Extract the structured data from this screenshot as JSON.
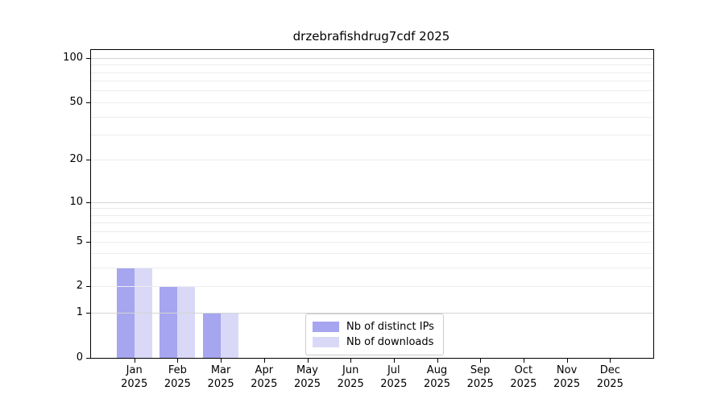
{
  "chart_data": {
    "type": "bar",
    "title": "drzebrafishdrug7cdf 2025",
    "x_categories_line1": [
      "Jan",
      "Feb",
      "Mar",
      "Apr",
      "May",
      "Jun",
      "Jul",
      "Aug",
      "Sep",
      "Oct",
      "Nov",
      "Dec"
    ],
    "x_categories_line2": [
      "2025",
      "2025",
      "2025",
      "2025",
      "2025",
      "2025",
      "2025",
      "2025",
      "2025",
      "2025",
      "2025",
      "2025"
    ],
    "series": [
      {
        "name": "Nb of distinct IPs",
        "color": "#a5a5f0",
        "values": [
          3,
          2,
          1,
          0,
          0,
          0,
          0,
          0,
          0,
          0,
          0,
          0
        ]
      },
      {
        "name": "Nb of downloads",
        "color": "#d9d9f7",
        "values": [
          3,
          2,
          1,
          0,
          0,
          0,
          0,
          0,
          0,
          0,
          0,
          0
        ]
      }
    ],
    "y_axis": {
      "scale": "log10(value+1)",
      "ticks": [
        0,
        1,
        2,
        5,
        10,
        20,
        50,
        100
      ],
      "max": 113,
      "major_gridlines": [
        1,
        10,
        100
      ],
      "minor_gridlines": [
        1,
        2,
        3,
        4,
        5,
        6,
        7,
        8,
        9,
        10,
        20,
        30,
        40,
        50,
        60,
        70,
        80,
        90,
        100
      ],
      "major_grid_color": "#d4d4d4",
      "minor_grid_color": "#ececec"
    },
    "legend": {
      "position": "lower-center-inside"
    },
    "grid": true,
    "axis_color": "#000000",
    "background_color": "#ffffff"
  }
}
